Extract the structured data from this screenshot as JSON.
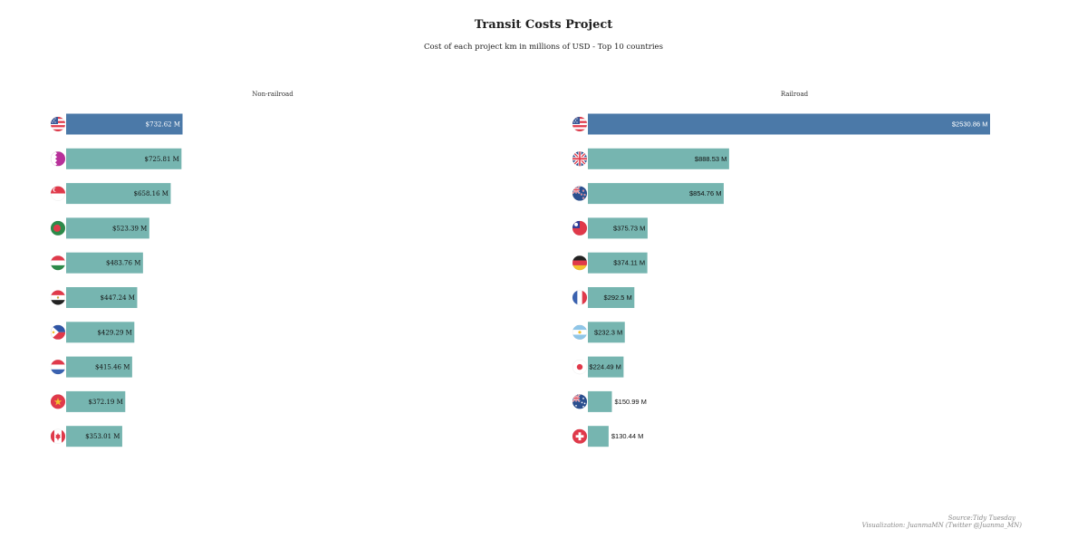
{
  "colors": {
    "highlight": "#4b79a8",
    "bar": "#76b5b0",
    "label_light": "#ffffff",
    "label_dark": "#111111"
  },
  "chart_data": [
    {
      "type": "bar",
      "orientation": "horizontal",
      "title": "Non-railroad",
      "xlim": [
        0,
        2600
      ],
      "label_font": "serif",
      "categories": [
        "United States",
        "Bahrain",
        "Singapore",
        "Bangladesh",
        "Hungary",
        "Egypt",
        "Philippines",
        "Netherlands",
        "Vietnam",
        "Canada"
      ],
      "flags": [
        "us",
        "bh",
        "sg",
        "bd",
        "hu",
        "eg",
        "ph",
        "nl",
        "vn",
        "ca"
      ],
      "values": [
        732.62,
        725.81,
        658.16,
        523.39,
        483.76,
        447.24,
        429.29,
        415.46,
        372.19,
        353.01
      ],
      "labels": [
        "$732.62 M",
        "$725.81 M",
        "$658.16 M",
        "$523.39 M",
        "$483.76 M",
        "$447.24 M",
        "$429.29 M",
        "$415.46 M",
        "$372.19 M",
        "$353.01 M"
      ]
    },
    {
      "type": "bar",
      "orientation": "horizontal",
      "title": "Railroad",
      "xlim": [
        0,
        2600
      ],
      "label_font": "sans",
      "categories": [
        "United States",
        "United Kingdom",
        "New Zealand",
        "Taiwan",
        "Germany",
        "France",
        "Argentina",
        "Japan",
        "Australia",
        "Switzerland"
      ],
      "flags": [
        "us",
        "gb",
        "nz",
        "tw",
        "de",
        "fr",
        "ar",
        "jp",
        "au",
        "ch"
      ],
      "values": [
        2530.86,
        888.53,
        854.76,
        375.73,
        374.11,
        292.5,
        232.3,
        224.49,
        150.99,
        130.44
      ],
      "labels": [
        "$2530.86 M",
        "$888.53 M",
        "$854.76 M",
        "$375.73 M",
        "$374.11 M",
        "$292.5 M",
        "$232.3 M",
        "$224.49 M",
        "$150.99 M",
        "$130.44 M"
      ]
    }
  ],
  "header": {
    "title": "Transit Costs Project",
    "subtitle": "Cost of each project km in millions of USD - Top 10 countries"
  },
  "caption": {
    "source": "Source:Tidy Tuesday",
    "credit": "Visualization: JuanmaMN (Twitter @Juanma_MN)"
  }
}
